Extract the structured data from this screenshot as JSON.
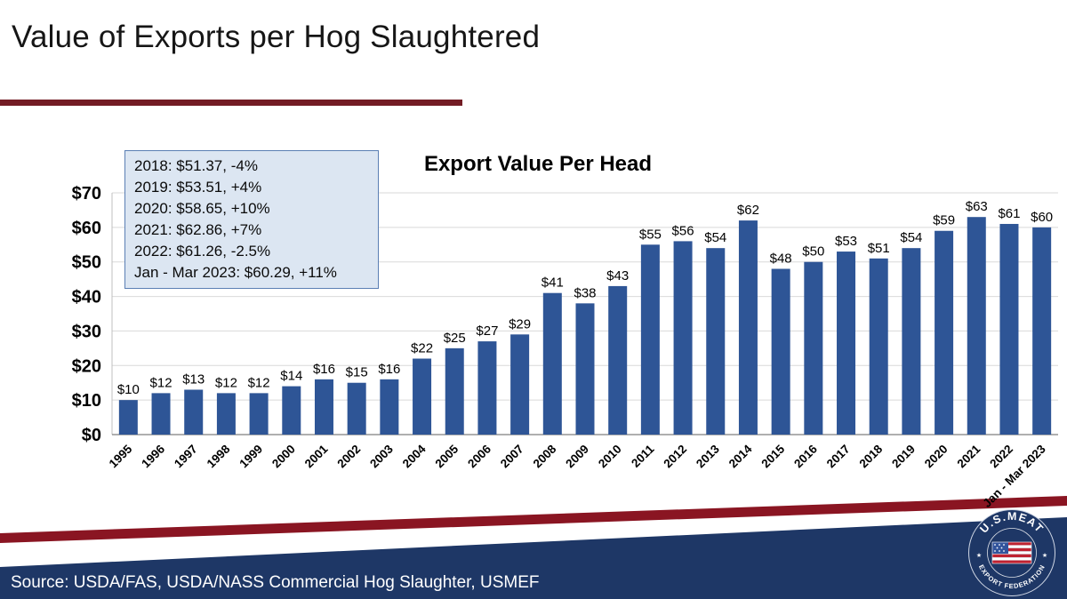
{
  "slide": {
    "title": "Value of Exports per Hog Slaughtered",
    "source": "Source: USDA/FAS, USDA/NASS Commercial Hog Slaughter, USMEF"
  },
  "annotation": {
    "lines": [
      "2018: $51.37, -4%",
      "2019: $53.51, +4%",
      "2020: $58.65, +10%",
      "2021: $62.86, +7%",
      "2022: $61.26, -2.5%",
      "Jan - Mar 2023: $60.29, +11%"
    ]
  },
  "logo": {
    "top_text": "U.S.MEAT",
    "bottom_text": "EXPORT FEDERATION"
  },
  "colors": {
    "bar": "#2e5596",
    "maroon": "#731c24",
    "footer_red": "#8a1522",
    "navy": "#1e3766",
    "gridline": "#d9d9d9",
    "annotation_bg": "#dce6f2",
    "annotation_border": "#5b7fb4"
  },
  "chart_data": {
    "type": "bar",
    "title": "Export Value Per Head",
    "categories": [
      "1995",
      "1996",
      "1997",
      "1998",
      "1999",
      "2000",
      "2001",
      "2002",
      "2003",
      "2004",
      "2005",
      "2006",
      "2007",
      "2008",
      "2009",
      "2010",
      "2011",
      "2012",
      "2013",
      "2014",
      "2015",
      "2016",
      "2017",
      "2018",
      "2019",
      "2020",
      "2021",
      "2022",
      "Jan - Mar 2023"
    ],
    "values": [
      10,
      12,
      13,
      12,
      12,
      14,
      16,
      15,
      16,
      22,
      25,
      27,
      29,
      41,
      38,
      43,
      55,
      56,
      54,
      62,
      48,
      50,
      53,
      51,
      54,
      59,
      63,
      61,
      60
    ],
    "labels": [
      "$10",
      "$12",
      "$13",
      "$12",
      "$12",
      "$14",
      "$16",
      "$15",
      "$16",
      "$22",
      "$25",
      "$27",
      "$29",
      "$41",
      "$38",
      "$43",
      "$55",
      "$56",
      "$54",
      "$62",
      "$48",
      "$50",
      "$53",
      "$51",
      "$54",
      "$59",
      "$63",
      "$61",
      "$60"
    ],
    "xlabel": "",
    "ylabel": "",
    "ylim": [
      0,
      70
    ],
    "ytick_interval": 10,
    "yticks": [
      "$0",
      "$10",
      "$20",
      "$30",
      "$40",
      "$50",
      "$60",
      "$70"
    ],
    "grid": true,
    "legend": false
  }
}
